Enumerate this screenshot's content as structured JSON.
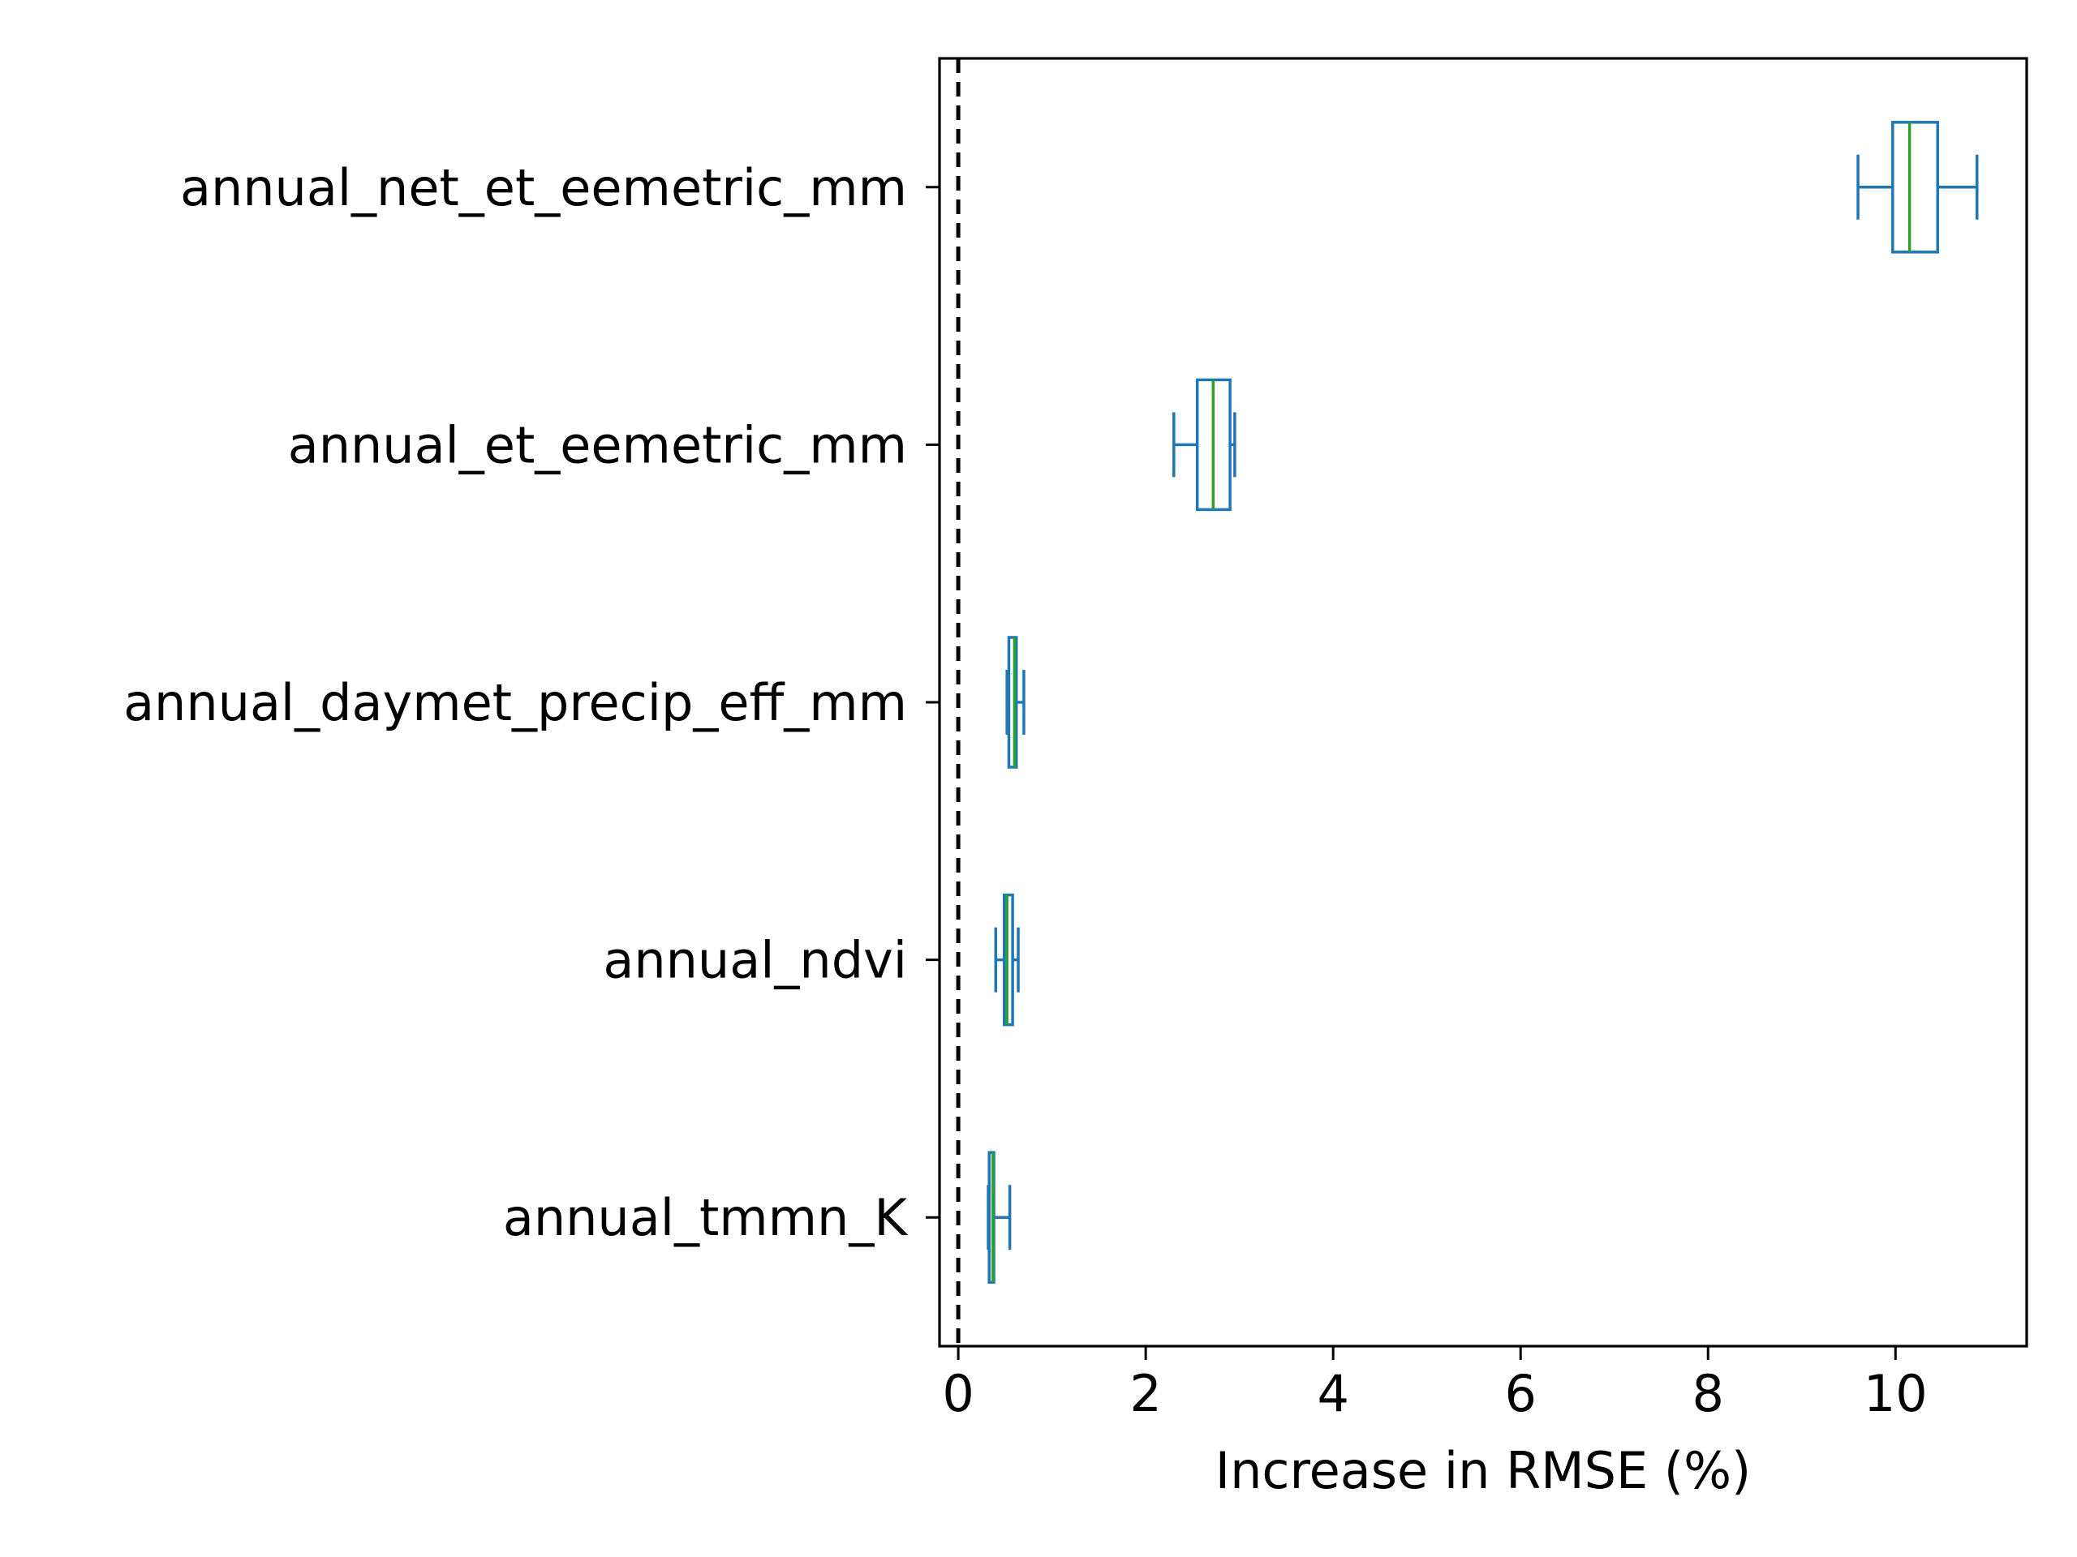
{
  "chart_data": {
    "type": "boxplot",
    "orientation": "horizontal",
    "title": "",
    "xlabel": "Increase in RMSE (%)",
    "ylabel": "",
    "xlim": [
      -0.2,
      11.4
    ],
    "x_ticks": [
      0,
      2,
      4,
      6,
      8,
      10
    ],
    "x_tick_labels": [
      "0",
      "2",
      "4",
      "6",
      "8",
      "10"
    ],
    "reference_line": {
      "x": 0,
      "style": "dashed",
      "color": "#000000"
    },
    "grid": false,
    "legend": "none",
    "box_color": "#1f77b4",
    "median_color": "#2ca02c",
    "categories": [
      "annual_net_et_eemetric_mm",
      "annual_et_eemetric_mm",
      "annual_daymet_precip_eff_mm",
      "annual_ndvi",
      "annual_tmmn_K"
    ],
    "boxes": [
      {
        "label": "annual_net_et_eemetric_mm",
        "whisker_low": 9.6,
        "q1": 9.97,
        "median": 10.15,
        "q3": 10.45,
        "whisker_high": 10.87
      },
      {
        "label": "annual_et_eemetric_mm",
        "whisker_low": 2.3,
        "q1": 2.55,
        "median": 2.72,
        "q3": 2.9,
        "whisker_high": 2.95
      },
      {
        "label": "annual_daymet_precip_eff_mm",
        "whisker_low": 0.52,
        "q1": 0.54,
        "median": 0.6,
        "q3": 0.62,
        "whisker_high": 0.7
      },
      {
        "label": "annual_ndvi",
        "whisker_low": 0.4,
        "q1": 0.49,
        "median": 0.52,
        "q3": 0.58,
        "whisker_high": 0.64
      },
      {
        "label": "annual_tmmn_K",
        "whisker_low": 0.32,
        "q1": 0.33,
        "median": 0.37,
        "q3": 0.38,
        "whisker_high": 0.55
      }
    ]
  }
}
